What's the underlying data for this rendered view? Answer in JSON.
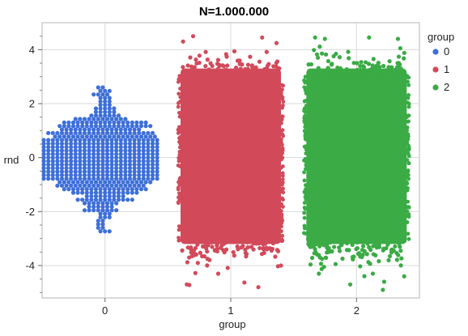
{
  "chart_data": {
    "type": "scatter",
    "title": "N=1.000.000",
    "xlabel": "group",
    "ylabel": "rnd",
    "categories": [
      "0",
      "1",
      "2"
    ],
    "x_ticks": [
      "0",
      "1",
      "2"
    ],
    "y_ticks": [
      "4",
      "2",
      "0",
      "-2",
      "-4"
    ],
    "ylim": [
      -5.2,
      5.0
    ],
    "xlim": [
      -0.5,
      2.5
    ],
    "grid": true,
    "legend": {
      "title": "group",
      "position": "right",
      "entries": [
        "0",
        "1",
        "2"
      ]
    },
    "series": [
      {
        "name": "0",
        "color": "#3d6fd8",
        "count_drawn": "sample (~1000 pts, beeswarm)",
        "y_min": -2.8,
        "y_max": 3.1
      },
      {
        "name": "1",
        "color": "#d24a5a",
        "y_min": -4.8,
        "y_max": 4.5,
        "dense_range": [
          -3.2,
          3.3
        ]
      },
      {
        "name": "2",
        "color": "#3aab45",
        "y_min": -4.9,
        "y_max": 4.45,
        "dense_range": [
          -3.2,
          3.3
        ]
      }
    ]
  }
}
